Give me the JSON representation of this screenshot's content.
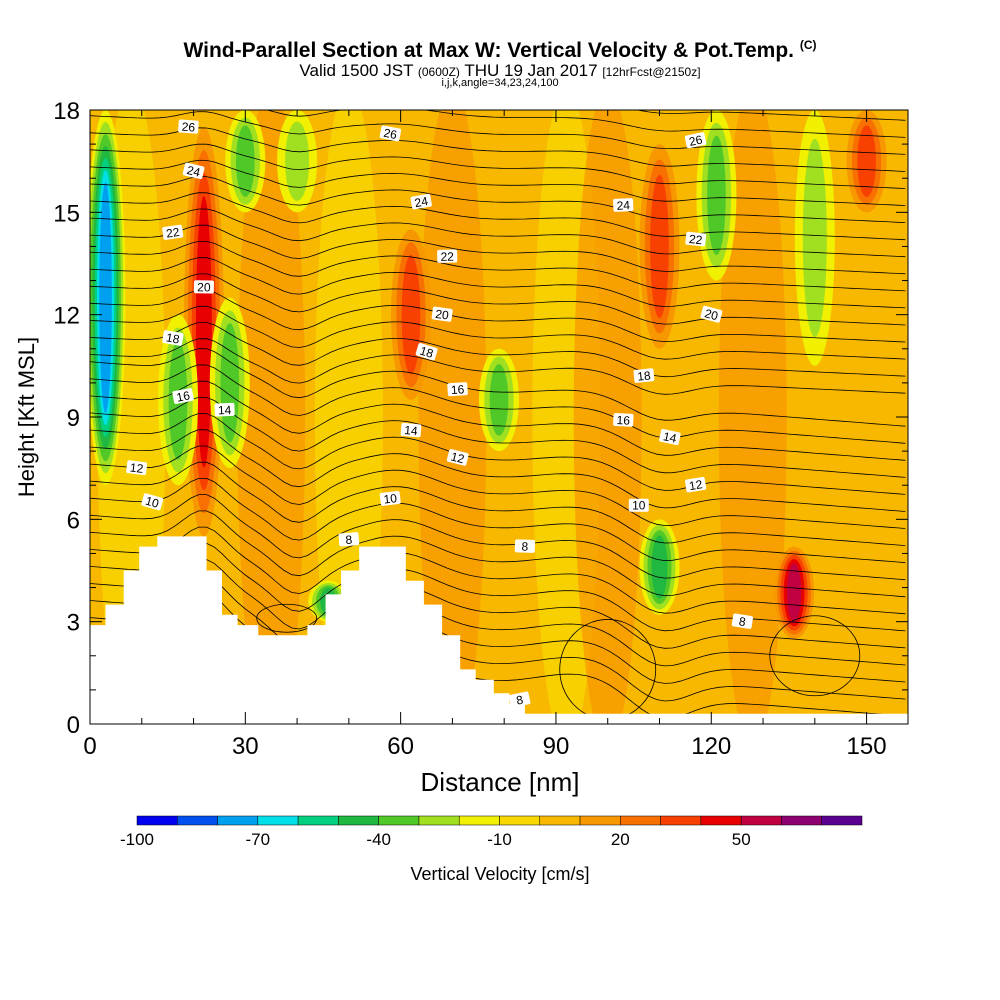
{
  "header": {
    "title": "Wind-Parallel Section at Max W: Vertical Velocity & Pot.Temp.",
    "copyright": "(C)",
    "subtitle_main": "Valid 1500 JST",
    "subtitle_z": "(0600Z)",
    "subtitle_date": "THU 19 Jan 2017",
    "subtitle_fcst": "[12hrFcst@2150z]",
    "subtitle2": "i,j,k,angle=34,23,24,100"
  },
  "colors": {
    "palette": [
      "#0000f0",
      "#0050f0",
      "#00a0f0",
      "#00e0e8",
      "#00d080",
      "#20b840",
      "#50c828",
      "#a0e020",
      "#f0f000",
      "#f8d800",
      "#f8b800",
      "#f89800",
      "#f87000",
      "#f84000",
      "#e80000",
      "#c00040",
      "#8c0070",
      "#5a0090"
    ],
    "terrain": "#ffffff",
    "contour": "#000000"
  },
  "chart_data": {
    "type": "heatmap",
    "xlabel": "Distance [nm]",
    "ylabel": "Height [Kft MSL]",
    "xlim": [
      0,
      158
    ],
    "ylim": [
      0,
      18
    ],
    "xticks": [
      "0",
      "30",
      "60",
      "90",
      "120",
      "150"
    ],
    "yticks": [
      "0",
      "3",
      "6",
      "9",
      "12",
      "15",
      "18"
    ],
    "colorbar": {
      "label": "Vertical Velocity [cm/s]",
      "ticks": [
        "-100",
        "-70",
        "-40",
        "-10",
        "20",
        "50"
      ],
      "bins": [
        -100,
        -90,
        -80,
        -70,
        -60,
        -50,
        -40,
        -30,
        -20,
        -10,
        0,
        10,
        20,
        30,
        40,
        50,
        60,
        70
      ]
    },
    "terrain_top_kft": [
      [
        0,
        2.9
      ],
      [
        3,
        2.9
      ],
      [
        3,
        3.5
      ],
      [
        6.5,
        3.5
      ],
      [
        6.5,
        4.5
      ],
      [
        9.5,
        4.5
      ],
      [
        9.5,
        5.2
      ],
      [
        13,
        5.2
      ],
      [
        13,
        5.5
      ],
      [
        22.5,
        5.5
      ],
      [
        22.5,
        4.5
      ],
      [
        25.5,
        4.5
      ],
      [
        25.5,
        3.2
      ],
      [
        28.5,
        3.2
      ],
      [
        28.5,
        2.9
      ],
      [
        32.5,
        2.9
      ],
      [
        32.5,
        2.6
      ],
      [
        42,
        2.6
      ],
      [
        42,
        2.9
      ],
      [
        45.5,
        2.9
      ],
      [
        45.5,
        3.8
      ],
      [
        48.5,
        3.8
      ],
      [
        48.5,
        4.5
      ],
      [
        52,
        4.5
      ],
      [
        52,
        5.2
      ],
      [
        61,
        5.2
      ],
      [
        61,
        4.2
      ],
      [
        64.5,
        4.2
      ],
      [
        64.5,
        3.5
      ],
      [
        68,
        3.5
      ],
      [
        68,
        2.6
      ],
      [
        71.5,
        2.6
      ],
      [
        71.5,
        1.6
      ],
      [
        74.5,
        1.6
      ],
      [
        74.5,
        1.3
      ],
      [
        78,
        1.3
      ],
      [
        78,
        0.9
      ],
      [
        81,
        0.9
      ],
      [
        81,
        0.6
      ],
      [
        84,
        0.6
      ],
      [
        84,
        0.3
      ],
      [
        158,
        0.3
      ]
    ],
    "vertical_velocity_features": [
      {
        "x": 3,
        "y0": 7,
        "y1": 18,
        "w": -70
      },
      {
        "x": 22,
        "y0": 5.5,
        "y1": 17.5,
        "w": 40
      },
      {
        "x": 17,
        "y0": 7,
        "y1": 12,
        "w": -30
      },
      {
        "x": 27,
        "y0": 7.5,
        "y1": 12.5,
        "w": -30
      },
      {
        "x": 30,
        "y0": 15,
        "y1": 18,
        "w": -30
      },
      {
        "x": 40,
        "y0": 15,
        "y1": 18,
        "w": -20
      },
      {
        "x": 46,
        "y0": 3,
        "y1": 4.2,
        "w": -40
      },
      {
        "x": 62,
        "y0": 9.5,
        "y1": 14.5,
        "w": 30
      },
      {
        "x": 79,
        "y0": 8,
        "y1": 11,
        "w": -30
      },
      {
        "x": 110,
        "y0": 3.2,
        "y1": 6,
        "w": -40
      },
      {
        "x": 110,
        "y0": 11,
        "y1": 17,
        "w": 30
      },
      {
        "x": 121,
        "y0": 13,
        "y1": 18,
        "w": -30
      },
      {
        "x": 136,
        "y0": 2.5,
        "y1": 5.2,
        "w": 50
      },
      {
        "x": 140,
        "y0": 10.5,
        "y1": 18,
        "w": -20
      },
      {
        "x": 150,
        "y0": 15,
        "y1": 18,
        "w": 30
      }
    ],
    "theta_contour_labels": [
      "8",
      "8",
      "8",
      "8",
      "10",
      "10",
      "10",
      "12",
      "12",
      "12",
      "14",
      "14",
      "14",
      "16",
      "16",
      "16",
      "18",
      "18",
      "18",
      "20",
      "20",
      "20",
      "22",
      "22",
      "22",
      "24",
      "24",
      "24",
      "26",
      "26",
      "26"
    ]
  }
}
